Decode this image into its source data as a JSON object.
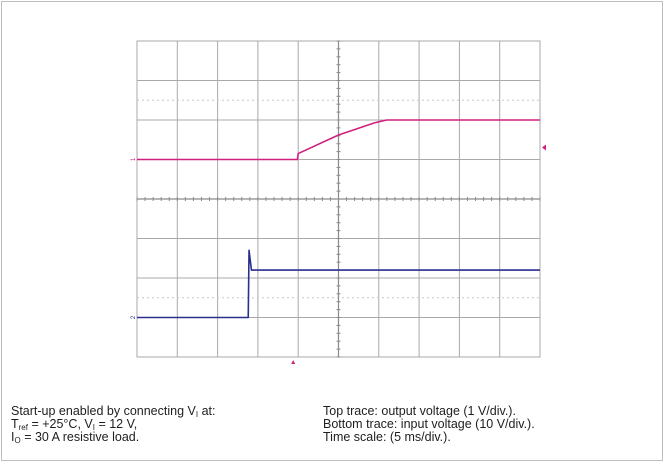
{
  "chart_data": {
    "type": "line",
    "title": "",
    "xlabel": "",
    "ylabel": "",
    "grid": true,
    "divisions": {
      "x": 10,
      "y": 8
    },
    "x_unit": "ms",
    "x_per_div": 5,
    "xlim": [
      0,
      50
    ],
    "series": [
      {
        "name": "Top trace: output voltage",
        "color": "#d1207f",
        "volts_per_div": 1,
        "marker_label": "1",
        "ground_level_div": 5.0,
        "points": [
          [
            0,
            0
          ],
          [
            19.9,
            0
          ],
          [
            20,
            0.15
          ],
          [
            25,
            0.62
          ],
          [
            29.5,
            0.93
          ],
          [
            31,
            1.0
          ],
          [
            50,
            1.0
          ]
        ]
      },
      {
        "name": "Bottom trace: input voltage",
        "color": "#2a2f8e",
        "volts_per_div": 10,
        "marker_label": "2",
        "ground_level_div": 1.0,
        "points": [
          [
            0,
            0
          ],
          [
            13.8,
            0
          ],
          [
            13.9,
            17
          ],
          [
            14.2,
            12
          ],
          [
            50,
            12
          ]
        ]
      }
    ]
  },
  "caption": {
    "left": {
      "line1_pre": "Start-up enabled by connecting V",
      "line1_sub": "I",
      "line1_post": " at:",
      "line2_a": "T",
      "line2_a_sub": "ref",
      "line2_b": " = +25°C, V",
      "line2_b_sub": "I",
      "line2_c": " = 12 V,",
      "line3_pre": "I",
      "line3_sub": "O",
      "line3_post": " = 30 A resistive load."
    },
    "right": {
      "line1": "Top trace: output voltage (1 V/div.).",
      "line2": "Bottom trace: input voltage (10 V/div.).",
      "line3": "Time scale: (5 ms/div.)."
    }
  },
  "colors": {
    "grid": "#a9a9a9",
    "dotted": "#c8c8c8",
    "screen": "#ffffff",
    "top_trace": "#d1207f",
    "bottom_trace": "#2a2f8e"
  }
}
